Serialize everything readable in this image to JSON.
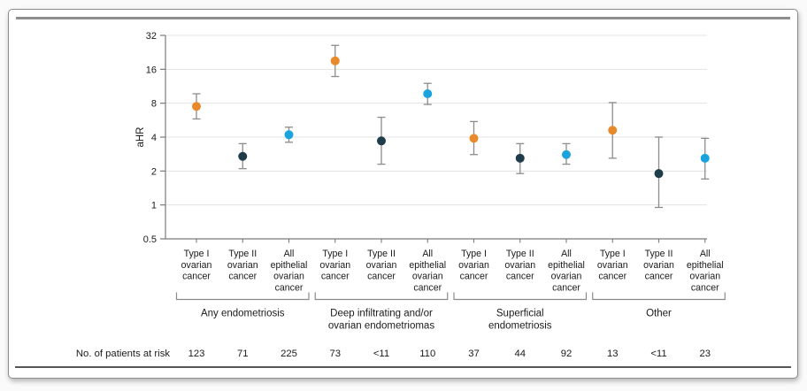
{
  "figure": {
    "risk_row_label": "No. of patients at risk"
  },
  "colors": {
    "marker_type1": "#E8892C",
    "marker_type2": "#1E3C49",
    "marker_all_epithelial": "#1AA3DC",
    "errorbar": "#8C8C8C",
    "gridline": "#E3E3E3",
    "axis": "#7A7A7A",
    "text": "#1A1A1A",
    "top_rule": "#8E8E8E",
    "bottom_rule": "#565656"
  },
  "chart_data": {
    "type": "scatter",
    "subtype": "point-estimates-with-95ci-forest-style",
    "title": "",
    "xlabel": "",
    "ylabel": "aHR",
    "yscale": "log2",
    "ylim": [
      0.5,
      32
    ],
    "ytick_labels": [
      "32",
      "16",
      "8",
      "4",
      "2",
      "1",
      "0.5"
    ],
    "ytick_values": [
      32,
      16,
      8,
      4,
      2,
      1,
      0.5
    ],
    "grid": true,
    "legend_position": "none",
    "risk_row_label": "No. of patients at risk",
    "groups": [
      {
        "label_lines": [
          "Any endometriosis"
        ],
        "points": [
          {
            "category_lines": [
              "Type I",
              "ovarian",
              "cancer"
            ],
            "color": "marker_type1",
            "aHR": 7.5,
            "ci_low": 5.8,
            "ci_high": 9.7,
            "n_at_risk": "123"
          },
          {
            "category_lines": [
              "Type II",
              "ovarian",
              "cancer"
            ],
            "color": "marker_type2",
            "aHR": 2.7,
            "ci_low": 2.1,
            "ci_high": 3.5,
            "n_at_risk": "71"
          },
          {
            "category_lines": [
              "All",
              "epithelial",
              "ovarian",
              "cancer"
            ],
            "color": "marker_all_epithelial",
            "aHR": 4.2,
            "ci_low": 3.6,
            "ci_high": 4.9,
            "n_at_risk": "225"
          }
        ]
      },
      {
        "label_lines": [
          "Deep infiltrating and/or",
          "ovarian endometriomas"
        ],
        "points": [
          {
            "category_lines": [
              "Type I",
              "ovarian",
              "cancer"
            ],
            "color": "marker_type1",
            "aHR": 19.0,
            "ci_low": 13.8,
            "ci_high": 26.1,
            "n_at_risk": "73"
          },
          {
            "category_lines": [
              "Type II",
              "ovarian",
              "cancer"
            ],
            "color": "marker_type2",
            "aHR": 3.7,
            "ci_low": 2.3,
            "ci_high": 6.0,
            "n_at_risk": "<11"
          },
          {
            "category_lines": [
              "All",
              "epithelial",
              "ovarian",
              "cancer"
            ],
            "color": "marker_all_epithelial",
            "aHR": 9.7,
            "ci_low": 7.8,
            "ci_high": 12.0,
            "n_at_risk": "110"
          }
        ]
      },
      {
        "label_lines": [
          "Superficial",
          "endometriosis"
        ],
        "points": [
          {
            "category_lines": [
              "Type I",
              "ovarian",
              "cancer"
            ],
            "color": "marker_type1",
            "aHR": 3.9,
            "ci_low": 2.8,
            "ci_high": 5.5,
            "n_at_risk": "37"
          },
          {
            "category_lines": [
              "Type II",
              "ovarian",
              "cancer"
            ],
            "color": "marker_type2",
            "aHR": 2.6,
            "ci_low": 1.9,
            "ci_high": 3.5,
            "n_at_risk": "44"
          },
          {
            "category_lines": [
              "All",
              "epithelial",
              "ovarian",
              "cancer"
            ],
            "color": "marker_all_epithelial",
            "aHR": 2.8,
            "ci_low": 2.3,
            "ci_high": 3.5,
            "n_at_risk": "92"
          }
        ]
      },
      {
        "label_lines": [
          "Other"
        ],
        "points": [
          {
            "category_lines": [
              "Type I",
              "ovarian",
              "cancer"
            ],
            "color": "marker_type1",
            "aHR": 4.6,
            "ci_low": 2.6,
            "ci_high": 8.1,
            "n_at_risk": "13"
          },
          {
            "category_lines": [
              "Type II",
              "ovarian",
              "cancer"
            ],
            "color": "marker_type2",
            "aHR": 1.9,
            "ci_low": 0.95,
            "ci_high": 4.0,
            "n_at_risk": "<11"
          },
          {
            "category_lines": [
              "All",
              "epithelial",
              "ovarian",
              "cancer"
            ],
            "color": "marker_all_epithelial",
            "aHR": 2.6,
            "ci_low": 1.7,
            "ci_high": 3.9,
            "n_at_risk": "23"
          }
        ]
      }
    ]
  }
}
